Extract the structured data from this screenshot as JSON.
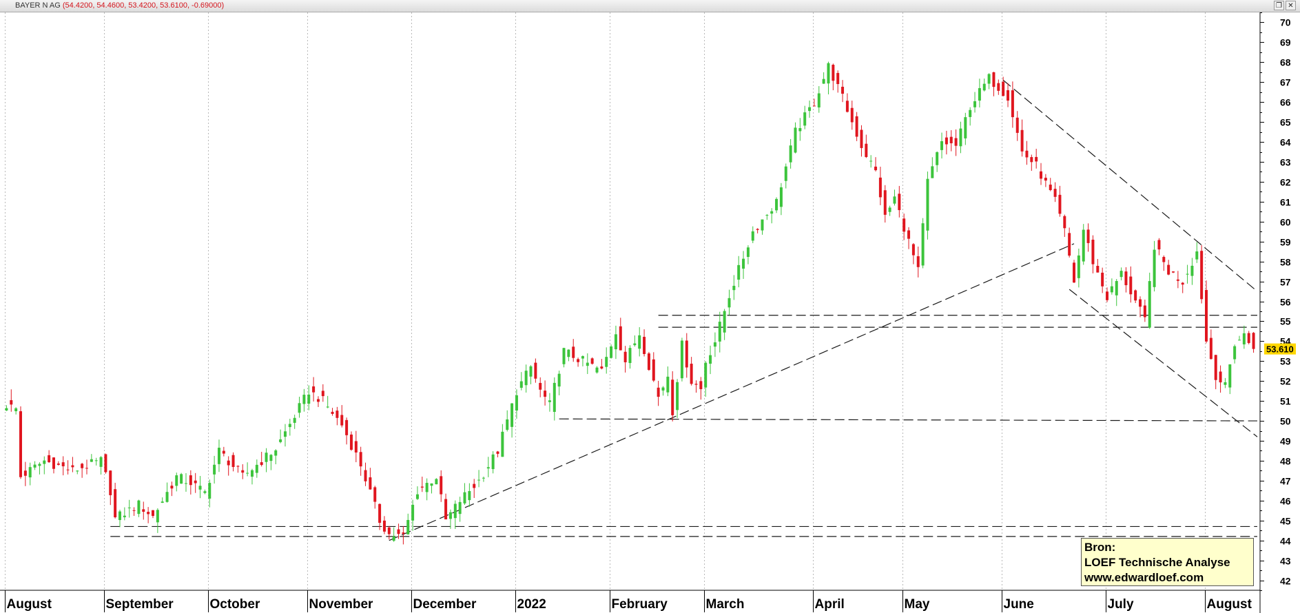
{
  "window": {
    "title": "BAYER N AG",
    "ohlc": "(54.4200, 54.4600, 53.4200, 53.6100, -0.69000)",
    "restore_symbol": "❐",
    "close_symbol": "✕"
  },
  "source_box": {
    "line1": "Bron:",
    "line2": "LOEF Technische Analyse",
    "line3": "www.edwardloef.com"
  },
  "colors": {
    "up": "#3cc43c",
    "down": "#e0161f",
    "grid": "#b8b8b8",
    "last_price_bg": "#ffd700",
    "trendline": "#1a1a1a"
  },
  "chart_data": {
    "type": "candlestick",
    "title": "BAYER N AG",
    "last_price_label": "53.610",
    "ylim": [
      41.5,
      70.5
    ],
    "y_ticks": [
      42,
      43,
      44,
      45,
      46,
      47,
      48,
      49,
      50,
      51,
      52,
      53,
      54,
      55,
      56,
      57,
      58,
      59,
      60,
      61,
      62,
      63,
      64,
      65,
      66,
      67,
      68,
      69,
      70
    ],
    "months": [
      "August",
      "September",
      "October",
      "November",
      "December",
      "2022",
      "February",
      "March",
      "April",
      "May",
      "June",
      "July",
      "August"
    ],
    "trading_days": 265,
    "month_start_index": [
      0,
      21,
      43,
      64,
      86,
      108,
      128,
      148,
      171,
      190,
      211,
      233,
      254
    ],
    "grid": "vertical-dotted",
    "anchors": [
      {
        "i": 0,
        "c": 50.8
      },
      {
        "i": 2,
        "c": 50.6
      },
      {
        "i": 3,
        "c": 47.2
      },
      {
        "i": 8,
        "c": 48.0
      },
      {
        "i": 14,
        "c": 47.5
      },
      {
        "i": 20,
        "c": 48.0
      },
      {
        "i": 22,
        "c": 46.5
      },
      {
        "i": 23,
        "c": 45.1
      },
      {
        "i": 28,
        "c": 45.8
      },
      {
        "i": 31,
        "c": 45.2
      },
      {
        "i": 36,
        "c": 47.2
      },
      {
        "i": 39,
        "c": 46.9
      },
      {
        "i": 42,
        "c": 46.4
      },
      {
        "i": 45,
        "c": 48.5
      },
      {
        "i": 50,
        "c": 47.2
      },
      {
        "i": 57,
        "c": 48.6
      },
      {
        "i": 64,
        "c": 51.5
      },
      {
        "i": 67,
        "c": 51.0
      },
      {
        "i": 71,
        "c": 49.8
      },
      {
        "i": 75,
        "c": 47.8
      },
      {
        "i": 79,
        "c": 45.0
      },
      {
        "i": 81,
        "c": 44.3
      },
      {
        "i": 84,
        "c": 44.2
      },
      {
        "i": 87,
        "c": 46.5
      },
      {
        "i": 91,
        "c": 47.2
      },
      {
        "i": 93,
        "c": 45.0
      },
      {
        "i": 96,
        "c": 46.0
      },
      {
        "i": 100,
        "c": 47.0
      },
      {
        "i": 104,
        "c": 48.5
      },
      {
        "i": 108,
        "c": 51.5
      },
      {
        "i": 111,
        "c": 52.7
      },
      {
        "i": 113,
        "c": 51.5
      },
      {
        "i": 115,
        "c": 50.8
      },
      {
        "i": 118,
        "c": 53.5
      },
      {
        "i": 122,
        "c": 53.0
      },
      {
        "i": 126,
        "c": 52.5
      },
      {
        "i": 129,
        "c": 54.5
      },
      {
        "i": 131,
        "c": 53.0
      },
      {
        "i": 134,
        "c": 54.4
      },
      {
        "i": 138,
        "c": 51.2
      },
      {
        "i": 140,
        "c": 52.3
      },
      {
        "i": 141,
        "c": 50.5
      },
      {
        "i": 143,
        "c": 53.8
      },
      {
        "i": 145,
        "c": 52.0
      },
      {
        "i": 147,
        "c": 51.6
      },
      {
        "i": 148,
        "c": 53.0
      },
      {
        "i": 150,
        "c": 54.0
      },
      {
        "i": 153,
        "c": 56.3
      },
      {
        "i": 158,
        "c": 59.5
      },
      {
        "i": 163,
        "c": 61.0
      },
      {
        "i": 167,
        "c": 64.5
      },
      {
        "i": 171,
        "c": 66.0
      },
      {
        "i": 174,
        "c": 67.8
      },
      {
        "i": 177,
        "c": 66.2
      },
      {
        "i": 181,
        "c": 63.8
      },
      {
        "i": 184,
        "c": 62.5
      },
      {
        "i": 186,
        "c": 60.2
      },
      {
        "i": 188,
        "c": 61.2
      },
      {
        "i": 191,
        "c": 59.0
      },
      {
        "i": 193,
        "c": 57.5
      },
      {
        "i": 195,
        "c": 62.0
      },
      {
        "i": 198,
        "c": 64.0
      },
      {
        "i": 201,
        "c": 63.8
      },
      {
        "i": 204,
        "c": 65.8
      },
      {
        "i": 208,
        "c": 67.2
      },
      {
        "i": 212,
        "c": 66.3
      },
      {
        "i": 215,
        "c": 63.5
      },
      {
        "i": 218,
        "c": 62.8
      },
      {
        "i": 222,
        "c": 61.0
      },
      {
        "i": 224,
        "c": 59.5
      },
      {
        "i": 226,
        "c": 57.0
      },
      {
        "i": 228,
        "c": 59.6
      },
      {
        "i": 230,
        "c": 58.0
      },
      {
        "i": 233,
        "c": 56.2
      },
      {
        "i": 236,
        "c": 57.4
      },
      {
        "i": 239,
        "c": 56.0
      },
      {
        "i": 241,
        "c": 55.0
      },
      {
        "i": 243,
        "c": 58.8
      },
      {
        "i": 246,
        "c": 57.5
      },
      {
        "i": 249,
        "c": 57.0
      },
      {
        "i": 252,
        "c": 58.5
      },
      {
        "i": 254,
        "c": 54.0
      },
      {
        "i": 256,
        "c": 52.3
      },
      {
        "i": 258,
        "c": 51.7
      },
      {
        "i": 260,
        "c": 53.9
      },
      {
        "i": 262,
        "c": 54.3
      },
      {
        "i": 264,
        "c": 53.61
      }
    ],
    "last_candle": {
      "open": 54.42,
      "high": 54.46,
      "low": 53.42,
      "close": 53.61,
      "change": -0.69
    },
    "trendlines": [
      {
        "from": [
          81,
          44.0
        ],
        "to": [
          192,
          55.4
        ],
        "extend_to": 226
      },
      {
        "from": [
          211,
          67.1
        ],
        "to": [
          265,
          56.5
        ]
      },
      {
        "from": [
          225,
          56.6
        ],
        "to": [
          265,
          49.2
        ]
      },
      {
        "from": [
          138,
          55.3
        ],
        "to": [
          265,
          55.3
        ]
      },
      {
        "from": [
          138,
          54.7
        ],
        "to": [
          265,
          54.7
        ]
      },
      {
        "from": [
          117,
          50.1
        ],
        "to": [
          265,
          50.0
        ]
      },
      {
        "from": [
          22,
          44.7
        ],
        "to": [
          265,
          44.7
        ]
      },
      {
        "from": [
          22,
          44.2
        ],
        "to": [
          265,
          44.2
        ]
      }
    ]
  }
}
